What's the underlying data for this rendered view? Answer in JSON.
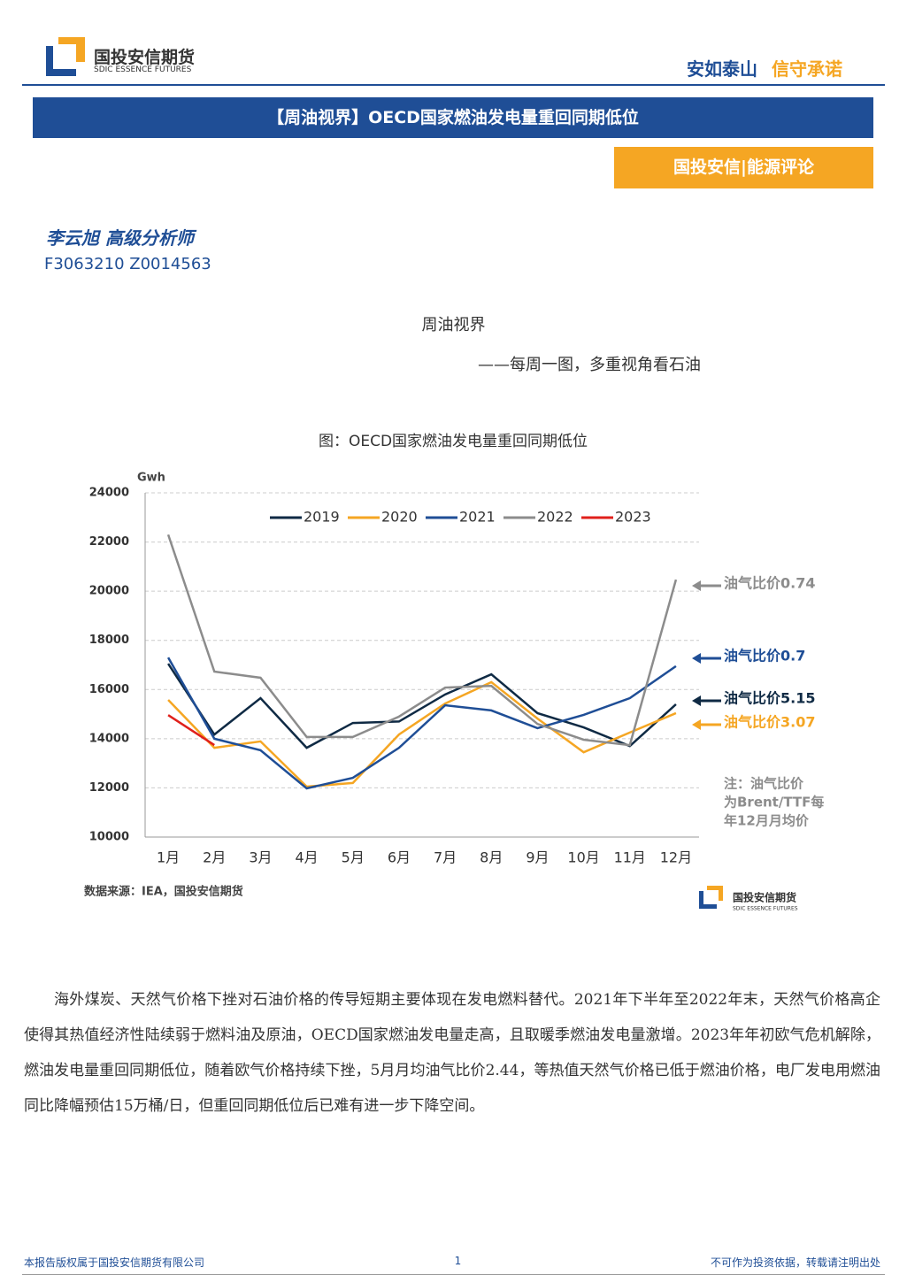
{
  "header": {
    "logo": {
      "name": "国投安信期货",
      "subtitle": "SDIC ESSENCE FUTURES"
    },
    "slogan": [
      "安如泰山",
      "信守承诺"
    ]
  },
  "banner": "【周油视界】OECD国家燃油发电量重回同期低位",
  "column": "国投安信|能源评论",
  "author": {
    "name": "李云旭 高级分析师",
    "ids": "F3063210 Z0014563"
  },
  "series_title": "周油视界",
  "series_subtitle": "——每周一图，多重视角看石油",
  "chart_data": {
    "type": "line",
    "title": "图：OECD国家燃油发电量重回同期低位",
    "y_label": "Gwh",
    "categories": [
      "1月",
      "2月",
      "3月",
      "4月",
      "5月",
      "6月",
      "7月",
      "8月",
      "9月",
      "10月",
      "11月",
      "12月"
    ],
    "series": [
      {
        "name": "2019",
        "color": "#0f2a44",
        "values": [
          17050,
          14170,
          15650,
          13630,
          14640,
          14700,
          15800,
          16620,
          15040,
          14460,
          13700,
          15400
        ]
      },
      {
        "name": "2020",
        "color": "#f5a623",
        "values": [
          15580,
          13630,
          13890,
          12050,
          12200,
          14170,
          15430,
          16300,
          14820,
          13450,
          14250,
          15040
        ]
      },
      {
        "name": "2021",
        "color": "#1f4e96",
        "values": [
          17300,
          14000,
          13530,
          11980,
          12410,
          13630,
          15360,
          15150,
          14430,
          14970,
          15650,
          16950
        ]
      },
      {
        "name": "2022",
        "color": "#8c8c8c",
        "values": [
          22300,
          16730,
          16480,
          14070,
          14070,
          14900,
          16080,
          16150,
          14600,
          13960,
          13740,
          20470
        ]
      },
      {
        "name": "2023",
        "color": "#e0201b",
        "values": [
          14960,
          13740,
          null,
          null,
          null,
          null,
          null,
          null,
          null,
          null,
          null,
          null
        ]
      }
    ],
    "ylim": [
      10000,
      24000
    ],
    "yticks": [
      10000,
      12000,
      14000,
      16000,
      18000,
      20000,
      22000,
      24000
    ],
    "grid": true,
    "annotations": [
      {
        "text": "油气比价0.74",
        "color": "#8c8c8c"
      },
      {
        "text": "油气比价0.7",
        "color": "#1f4e96"
      },
      {
        "text": "油气比价5.15",
        "color": "#0f2a44"
      },
      {
        "text": "油气比价3.07",
        "color": "#f5a623"
      }
    ],
    "note": [
      "注：油气比价",
      "为Brent/TTF每",
      "年12月月均价"
    ],
    "source": "数据来源：IEA，国投安信期货"
  },
  "paragraph": "海外煤炭、天然气价格下挫对石油价格的传导短期主要体现在发电燃料替代。2021年下半年至2022年末，天然气价格高企使得其热值经济性陆续弱于燃料油及原油，OECD国家燃油发电量走高，且取暖季燃油发电量激增。2023年年初欧气危机解除，燃油发电量重回同期低位，随着欧气价格持续下挫，5月月均油气比价2.44，等热值天然气价格已低于燃油价格，电厂发电用燃油同比降幅预估15万桶/日，但重回同期低位后已难有进一步下降空间。",
  "footer": {
    "left": "本报告版权属于国投安信期货有限公司",
    "page": "1",
    "right": "不可作为投资依据，转载请注明出处"
  }
}
